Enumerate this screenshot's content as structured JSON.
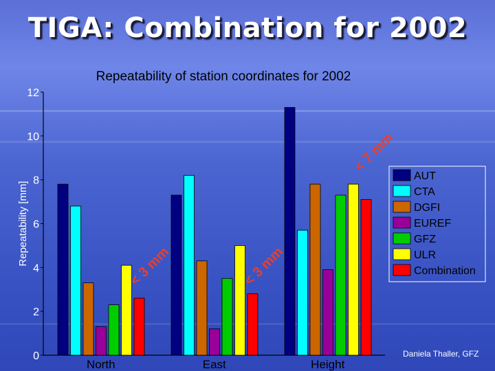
{
  "slide": {
    "title": "TIGA: Combination for 2002",
    "credit": "Daniela Thaller, GFZ"
  },
  "chart_data": {
    "type": "bar",
    "title": "Repeatability of station coordinates for 2002",
    "xlabel": "",
    "ylabel": "Repeatability [mm]",
    "ylim": [
      0,
      12
    ],
    "yticks": [
      0,
      2,
      4,
      6,
      8,
      10,
      12
    ],
    "categories": [
      "North",
      "East",
      "Height"
    ],
    "series": [
      {
        "name": "AUT",
        "color": "#000080",
        "values": [
          7.8,
          7.3,
          11.3
        ]
      },
      {
        "name": "CTA",
        "color": "#00ffff",
        "values": [
          6.8,
          8.2,
          5.7
        ]
      },
      {
        "name": "DGFI",
        "color": "#cc6600",
        "values": [
          3.3,
          4.3,
          7.8
        ]
      },
      {
        "name": "EUREF",
        "color": "#990099",
        "values": [
          1.3,
          1.2,
          3.9
        ]
      },
      {
        "name": "GFZ",
        "color": "#00cc00",
        "values": [
          2.3,
          3.5,
          7.3
        ]
      },
      {
        "name": "ULR",
        "color": "#ffff00",
        "values": [
          4.1,
          5.0,
          7.8
        ]
      },
      {
        "name": "Combination",
        "color": "#ff0000",
        "values": [
          2.6,
          2.8,
          7.1
        ]
      }
    ],
    "annotations": [
      "< 3 mm",
      "< 3 mm",
      "< 7 mm"
    ],
    "legend": "right",
    "grid": false
  }
}
